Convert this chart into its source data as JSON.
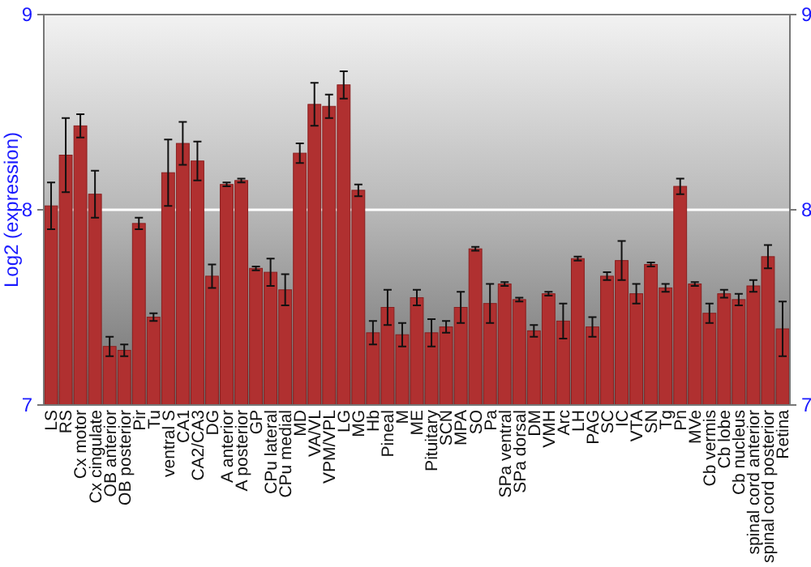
{
  "chart_data": {
    "type": "bar",
    "ylabel": "Log2 (expression)",
    "categories": [
      "LS",
      "RS",
      "Cx motor",
      "Cx cingulate",
      "OB anterior",
      "OB posterior",
      "Pir",
      "Tu",
      "ventral S",
      "CA1",
      "CA2/CA3",
      "DG",
      "A anterior",
      "A posterior",
      "GP",
      "CPu lateral",
      "CPu medial",
      "MD",
      "VA/VL",
      "VPM/VPL",
      "LG",
      "MG",
      "Hb",
      "Pineal",
      "M",
      "ME",
      "Pituitary",
      "SCN",
      "MPA",
      "SO",
      "Pa",
      "SPa ventral",
      "SPa dorsal",
      "DM",
      "VMH",
      "Arc",
      "LH",
      "PAG",
      "SC",
      "IC",
      "VTA",
      "SN",
      "Tg",
      "Pn",
      "MVe",
      "Cb vermis",
      "Cb lobe",
      "Cb nucleus",
      "spinal cord anterior",
      "spinal cord posterior",
      "Retina"
    ],
    "series": [
      {
        "color": "#b03030",
        "values": [
          8.02,
          8.28,
          8.43,
          8.08,
          7.3,
          7.28,
          7.93,
          7.45,
          8.19,
          8.34,
          8.25,
          7.66,
          8.13,
          8.15,
          7.7,
          7.68,
          7.59,
          8.29,
          8.54,
          8.53,
          8.64,
          8.1,
          7.37,
          7.5,
          7.36,
          7.55,
          7.37,
          7.4,
          7.5,
          7.8,
          7.52,
          7.62,
          7.54,
          7.38,
          7.57,
          7.43,
          7.75,
          7.4,
          7.66,
          7.74,
          7.57,
          7.72,
          7.6,
          8.12,
          7.62,
          7.47,
          7.57,
          7.54,
          7.61,
          7.76,
          7.39
        ],
        "errors": [
          0.12,
          0.19,
          0.06,
          0.12,
          0.05,
          0.03,
          0.03,
          0.02,
          0.17,
          0.11,
          0.1,
          0.06,
          0.01,
          0.01,
          0.01,
          0.07,
          0.08,
          0.05,
          0.11,
          0.06,
          0.07,
          0.03,
          0.06,
          0.09,
          0.06,
          0.04,
          0.07,
          0.03,
          0.08,
          0.01,
          0.1,
          0.01,
          0.01,
          0.03,
          0.01,
          0.09,
          0.01,
          0.05,
          0.02,
          0.1,
          0.05,
          0.01,
          0.02,
          0.04,
          0.01,
          0.05,
          0.02,
          0.03,
          0.03,
          0.06,
          0.14
        ]
      }
    ],
    "ylim": [
      7,
      9
    ],
    "yticks": [
      7,
      8,
      9
    ],
    "y2lim": [
      7,
      9
    ],
    "y2ticks": [
      7,
      8,
      9
    ],
    "grid": "y"
  }
}
